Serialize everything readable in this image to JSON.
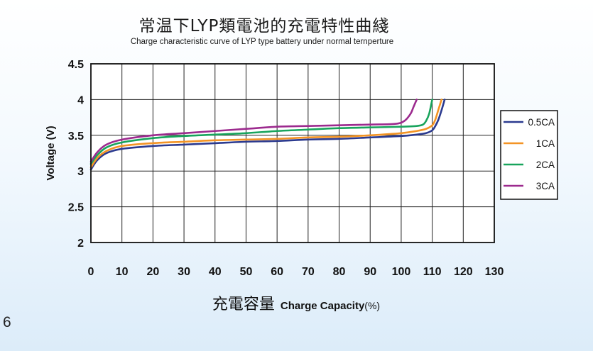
{
  "page": {
    "page_number": "6"
  },
  "chart_data": {
    "type": "line",
    "title": "常温下LYP類電池的充電特性曲綫",
    "subtitle": "Charge characteristic curve of LYP type battery under normal ternperture",
    "xlabel_cn": "充電容量",
    "xlabel_en": "Charge Capacity",
    "xlabel_unit": "(%)",
    "ylabel": "Voltage (V)",
    "xlim": [
      0,
      130
    ],
    "ylim": [
      2,
      4.5
    ],
    "x_ticks": [
      "0",
      "10",
      "20",
      "30",
      "40",
      "50",
      "60",
      "70",
      "80",
      "90",
      "100",
      "110",
      "120",
      "130"
    ],
    "y_ticks": [
      "4.5",
      "4",
      "3.5",
      "3",
      "2.5",
      "2"
    ],
    "grid": true,
    "legend_position": "right",
    "series": [
      {
        "name": "0.5CA",
        "color": "#2b3a8f",
        "points": [
          [
            0,
            3.02
          ],
          [
            2,
            3.15
          ],
          [
            5,
            3.25
          ],
          [
            10,
            3.31
          ],
          [
            20,
            3.35
          ],
          [
            30,
            3.37
          ],
          [
            40,
            3.39
          ],
          [
            50,
            3.41
          ],
          [
            60,
            3.42
          ],
          [
            70,
            3.44
          ],
          [
            80,
            3.45
          ],
          [
            90,
            3.47
          ],
          [
            100,
            3.49
          ],
          [
            105,
            3.51
          ],
          [
            108,
            3.53
          ],
          [
            110,
            3.57
          ],
          [
            111,
            3.63
          ],
          [
            112,
            3.72
          ],
          [
            113,
            3.85
          ],
          [
            114,
            4.0
          ]
        ]
      },
      {
        "name": "1CA",
        "color": "#f39425",
        "points": [
          [
            0,
            3.05
          ],
          [
            2,
            3.18
          ],
          [
            5,
            3.28
          ],
          [
            10,
            3.35
          ],
          [
            20,
            3.39
          ],
          [
            30,
            3.41
          ],
          [
            40,
            3.43
          ],
          [
            50,
            3.44
          ],
          [
            60,
            3.45
          ],
          [
            70,
            3.47
          ],
          [
            80,
            3.48
          ],
          [
            90,
            3.5
          ],
          [
            100,
            3.53
          ],
          [
            105,
            3.56
          ],
          [
            108,
            3.59
          ],
          [
            110,
            3.64
          ],
          [
            111,
            3.72
          ],
          [
            112,
            3.86
          ],
          [
            113,
            4.0
          ]
        ]
      },
      {
        "name": "2CA",
        "color": "#18a45c",
        "points": [
          [
            0,
            3.1
          ],
          [
            2,
            3.22
          ],
          [
            5,
            3.33
          ],
          [
            10,
            3.4
          ],
          [
            20,
            3.46
          ],
          [
            30,
            3.49
          ],
          [
            40,
            3.51
          ],
          [
            50,
            3.53
          ],
          [
            60,
            3.56
          ],
          [
            70,
            3.58
          ],
          [
            80,
            3.6
          ],
          [
            90,
            3.61
          ],
          [
            100,
            3.62
          ],
          [
            105,
            3.63
          ],
          [
            107,
            3.65
          ],
          [
            108,
            3.7
          ],
          [
            109,
            3.8
          ],
          [
            110,
            4.0
          ]
        ]
      },
      {
        "name": "3CA",
        "color": "#9c2a8e",
        "points": [
          [
            0,
            3.13
          ],
          [
            2,
            3.26
          ],
          [
            5,
            3.37
          ],
          [
            10,
            3.44
          ],
          [
            20,
            3.5
          ],
          [
            30,
            3.53
          ],
          [
            40,
            3.56
          ],
          [
            50,
            3.59
          ],
          [
            60,
            3.62
          ],
          [
            70,
            3.63
          ],
          [
            80,
            3.64
          ],
          [
            90,
            3.65
          ],
          [
            98,
            3.66
          ],
          [
            101,
            3.7
          ],
          [
            103,
            3.8
          ],
          [
            104,
            3.9
          ],
          [
            105,
            4.0
          ]
        ]
      }
    ]
  }
}
